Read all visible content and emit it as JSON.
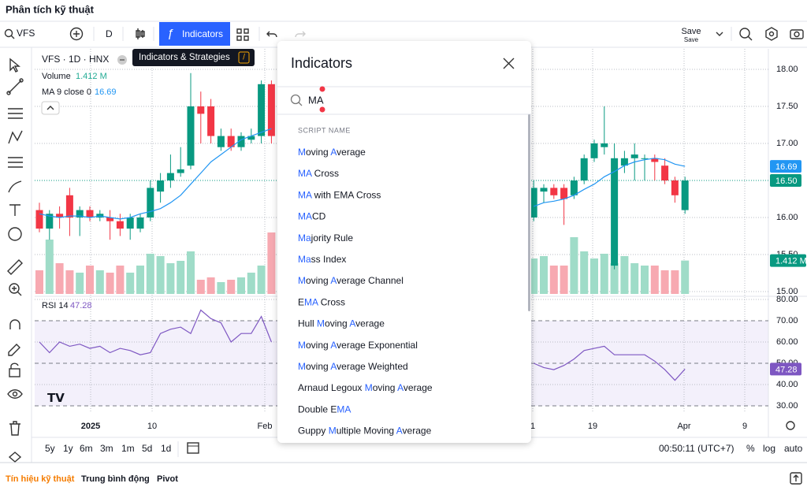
{
  "header": {
    "title": "Phân tích kỹ thuật"
  },
  "toolbar": {
    "symbol": "VFS",
    "interval": "D",
    "indicators": "Indicators",
    "save": "Save",
    "save_sub": "Save"
  },
  "tooltip": {
    "text": "Indicators & Strategies",
    "key": "/"
  },
  "legend": {
    "symbol": "VFS · 1D · HNX",
    "volume": "Volume",
    "volume_value": "1.412 M",
    "ma": "MA 9 close 0",
    "ma_value": 16.69,
    "rsi": "RSI 14",
    "rsi_value": 47.28
  },
  "chart": {
    "yticks": [
      {
        "value": 18,
        "label": "18.00"
      },
      {
        "value": 17.5,
        "label": "17.50"
      },
      {
        "value": 17,
        "label": "17.00"
      },
      {
        "value": 16.5,
        "label": "16.50"
      },
      {
        "value": 16,
        "label": "16.00"
      },
      {
        "value": 15.5,
        "label": "15.50"
      },
      {
        "value": 15,
        "label": "15.00"
      }
    ],
    "rsi_ticks": [
      {
        "value": 80,
        "label": "80.00"
      },
      {
        "value": 70,
        "label": "70.00"
      },
      {
        "value": 60,
        "label": "60.00"
      },
      {
        "value": 50,
        "label": "50.00"
      },
      {
        "value": 40,
        "label": "40.00"
      },
      {
        "value": 30,
        "label": "30.00"
      }
    ],
    "x_labels": [
      "2025",
      "10",
      "Feb",
      "1",
      "19",
      "Apr",
      "9"
    ],
    "last_close": {
      "value": 16.5,
      "label": "16.50"
    },
    "candles": [
      [
        16.1,
        16.2,
        15.8,
        15.85
      ],
      [
        15.85,
        16.1,
        15.7,
        16.05
      ],
      [
        16.05,
        16.15,
        15.85,
        16.0
      ],
      [
        16.3,
        16.4,
        15.75,
        16.0
      ],
      [
        16.0,
        16.15,
        15.75,
        16.1
      ],
      [
        16.1,
        16.15,
        15.95,
        16.0
      ],
      [
        16.0,
        16.1,
        15.95,
        16.05
      ],
      [
        16.0,
        16.1,
        15.7,
        15.95
      ],
      [
        15.95,
        16.05,
        15.75,
        15.85
      ],
      [
        15.85,
        16.05,
        15.7,
        16.0
      ],
      [
        15.85,
        16.05,
        15.8,
        16.0
      ],
      [
        16.0,
        16.5,
        15.95,
        16.4
      ],
      [
        16.35,
        16.6,
        16.2,
        16.5
      ],
      [
        16.5,
        16.85,
        16.4,
        16.6
      ],
      [
        16.6,
        16.95,
        16.55,
        16.65
      ],
      [
        16.7,
        17.95,
        16.65,
        17.5
      ],
      [
        17.5,
        17.7,
        17.0,
        17.4
      ],
      [
        17.5,
        17.6,
        17.0,
        17.1
      ],
      [
        16.95,
        17.2,
        16.9,
        17.1
      ],
      [
        17.1,
        17.2,
        16.9,
        16.95
      ],
      [
        16.95,
        17.15,
        16.9,
        17.1
      ],
      [
        17.05,
        17.2,
        17.0,
        17.1
      ],
      [
        17.1,
        17.85,
        17.0,
        17.8
      ],
      [
        17.8,
        17.85,
        17.0,
        17.1
      ],
      null,
      null,
      null,
      null,
      null,
      null,
      null,
      null,
      null,
      null,
      null,
      null,
      null,
      null,
      null,
      null,
      null,
      null,
      null,
      null,
      null,
      null,
      null,
      null,
      null,
      [
        16.0,
        16.5,
        15.95,
        16.4
      ],
      [
        16.35,
        16.45,
        16.2,
        16.4
      ],
      [
        16.4,
        16.45,
        16.25,
        16.3
      ],
      [
        16.4,
        16.45,
        15.9,
        16.25
      ],
      [
        16.3,
        16.55,
        16.25,
        16.5
      ],
      [
        16.5,
        16.85,
        16.45,
        16.8
      ],
      [
        16.8,
        17.05,
        16.75,
        17.0
      ],
      [
        16.95,
        17.5,
        16.85,
        17.0
      ],
      [
        15.35,
        17.0,
        15.3,
        16.8
      ],
      [
        16.7,
        16.9,
        16.6,
        16.8
      ],
      [
        16.8,
        17.0,
        16.5,
        16.85
      ],
      [
        16.8,
        16.85,
        16.5,
        16.8
      ],
      [
        16.8,
        16.85,
        16.5,
        16.75
      ],
      [
        16.7,
        16.8,
        16.45,
        16.5
      ],
      [
        16.5,
        16.55,
        16.2,
        16.3
      ],
      [
        16.1,
        16.55,
        16.05,
        16.5
      ]
    ],
    "volume": [
      1.0,
      2.3,
      1.3,
      1.0,
      0.9,
      1.2,
      1.0,
      0.9,
      1.2,
      0.9,
      1.2,
      1.7,
      1.6,
      1.3,
      1.4,
      1.8,
      0.6,
      0.7,
      0.5,
      0.6,
      0.7,
      0.9,
      1.2,
      2.6,
      null,
      null,
      null,
      null,
      null,
      null,
      null,
      null,
      null,
      null,
      null,
      null,
      null,
      null,
      null,
      null,
      null,
      null,
      null,
      null,
      null,
      null,
      null,
      null,
      null,
      1.5,
      1.6,
      1.2,
      1.2,
      2.4,
      1.8,
      1.5,
      1.7,
      1.3,
      1.6,
      1.3,
      1.2,
      1.2,
      1.0,
      1.0,
      1.412
    ],
    "rsi": [
      60,
      55,
      60,
      58,
      59,
      57,
      58,
      55,
      57,
      56,
      54,
      55,
      64,
      66,
      67,
      64,
      75,
      71,
      69,
      60,
      64,
      64,
      72,
      60,
      null,
      null,
      null,
      null,
      null,
      null,
      null,
      null,
      null,
      null,
      null,
      null,
      null,
      null,
      null,
      null,
      null,
      null,
      null,
      null,
      null,
      null,
      null,
      null,
      null,
      50,
      48,
      47,
      49,
      52,
      56,
      57,
      58,
      54,
      54,
      54,
      54,
      51,
      47,
      42,
      47.28
    ],
    "ma": [
      16.05,
      16.02,
      16.0,
      16.02,
      16.02,
      16.0,
      16.02,
      16.0,
      15.98,
      16.0,
      16.05,
      16.08,
      16.12,
      16.2,
      16.3,
      16.45,
      16.6,
      16.75,
      16.85,
      16.95,
      17.05,
      17.1,
      17.15,
      17.2,
      null,
      null,
      null,
      null,
      null,
      null,
      null,
      null,
      null,
      null,
      null,
      null,
      null,
      null,
      null,
      null,
      null,
      null,
      null,
      null,
      null,
      null,
      null,
      null,
      null,
      16.15,
      16.2,
      16.22,
      16.25,
      16.3,
      16.38,
      16.45,
      16.55,
      16.62,
      16.7,
      16.75,
      16.78,
      16.8,
      16.78,
      16.72,
      16.69
    ]
  },
  "timeframes": [
    "5y",
    "1y",
    "6m",
    "3m",
    "1m",
    "5d",
    "1d"
  ],
  "status": {
    "clock": "00:50:11 (UTC+7)",
    "percent": "%",
    "log": "log",
    "auto": "auto"
  },
  "dialog": {
    "title": "Indicators",
    "query": "MA",
    "section": "SCRIPT NAME",
    "items": [
      "Moving Average",
      "MA Cross",
      "MA with EMA Cross",
      "MACD",
      "Majority Rule",
      "Mass Index",
      "Moving Average Channel",
      "EMA Cross",
      "Hull Moving Average",
      "Moving Average Exponential",
      "Moving Average Weighted",
      "Arnaud Legoux Moving Average",
      "Double EMA",
      "Guppy Multiple Moving Average"
    ]
  },
  "footer": {
    "tabs": [
      "Tín hiệu kỹ thuật",
      "Trung bình động",
      "Pivot"
    ]
  }
}
